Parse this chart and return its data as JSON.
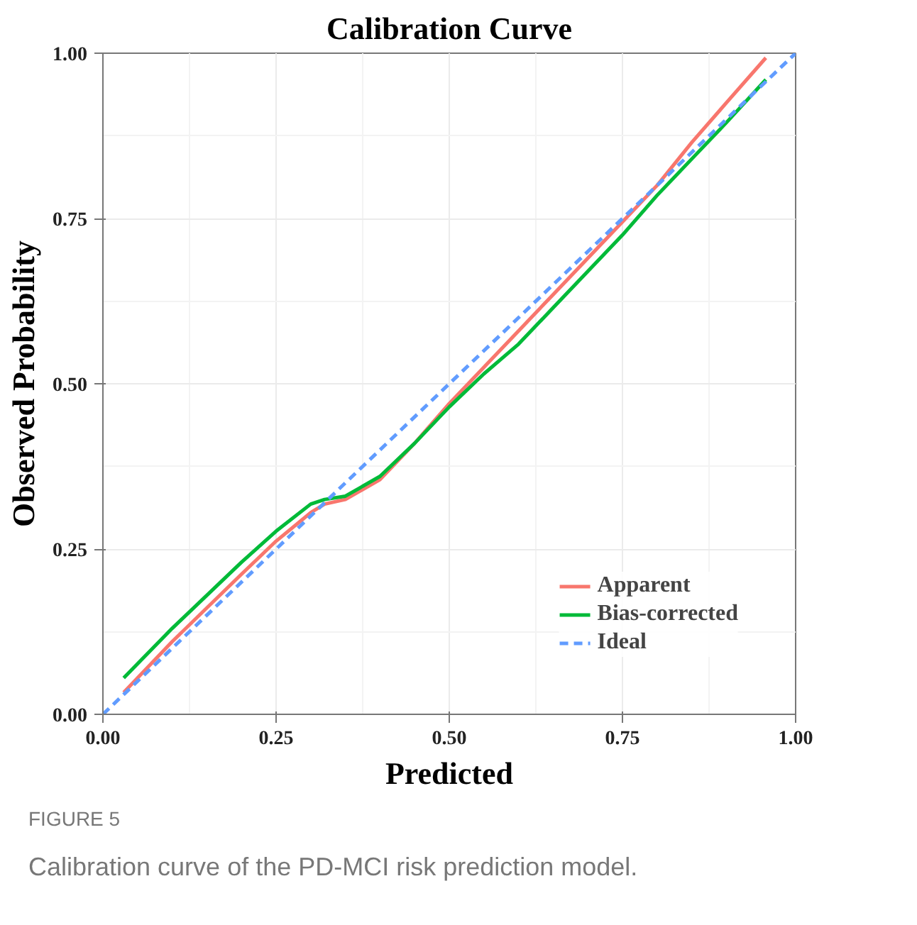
{
  "chart_data": {
    "type": "line",
    "title": "Calibration Curve",
    "xlabel": "Predicted",
    "ylabel": "Observed Probability",
    "xlim": [
      0,
      1
    ],
    "ylim": [
      0,
      1
    ],
    "xticks": [
      {
        "value": 0,
        "label": "0.00"
      },
      {
        "value": 0.25,
        "label": "0.25"
      },
      {
        "value": 0.5,
        "label": "0.50"
      },
      {
        "value": 0.75,
        "label": "0.75"
      },
      {
        "value": 1,
        "label": "1.00"
      }
    ],
    "yticks": [
      {
        "value": 0,
        "label": "0.00"
      },
      {
        "value": 0.25,
        "label": "0.25"
      },
      {
        "value": 0.5,
        "label": "0.50"
      },
      {
        "value": 0.75,
        "label": "0.75"
      },
      {
        "value": 1,
        "label": "1.00"
      }
    ],
    "grid": true,
    "legend": "bottom right",
    "marker": "none",
    "series": [
      {
        "name": "Apparent",
        "color": "#f8766d",
        "line_style": "solid",
        "x": [
          0.03,
          0.1,
          0.2,
          0.25,
          0.3,
          0.32,
          0.35,
          0.4,
          0.45,
          0.5,
          0.55,
          0.6,
          0.65,
          0.7,
          0.75,
          0.8,
          0.85,
          0.9,
          0.957
        ],
        "values": [
          0.033,
          0.11,
          0.212,
          0.262,
          0.305,
          0.318,
          0.325,
          0.355,
          0.41,
          0.47,
          0.525,
          0.58,
          0.635,
          0.69,
          0.745,
          0.8,
          0.865,
          0.925,
          0.993
        ]
      },
      {
        "name": "Bias-corrected",
        "color": "#00ba38",
        "line_style": "solid",
        "x": [
          0.03,
          0.1,
          0.2,
          0.25,
          0.3,
          0.32,
          0.35,
          0.4,
          0.45,
          0.5,
          0.55,
          0.6,
          0.65,
          0.7,
          0.75,
          0.8,
          0.85,
          0.9,
          0.957
        ],
        "values": [
          0.055,
          0.13,
          0.23,
          0.277,
          0.318,
          0.325,
          0.33,
          0.36,
          0.41,
          0.465,
          0.515,
          0.56,
          0.615,
          0.67,
          0.725,
          0.785,
          0.84,
          0.895,
          0.96
        ]
      },
      {
        "name": "Ideal",
        "color": "#619cff",
        "line_style": "dashed",
        "x": [
          0,
          1
        ],
        "values": [
          0,
          1
        ]
      }
    ],
    "annotations": [
      "FIGURE 5",
      "Calibration curve of the PD-MCI risk prediction model."
    ]
  }
}
